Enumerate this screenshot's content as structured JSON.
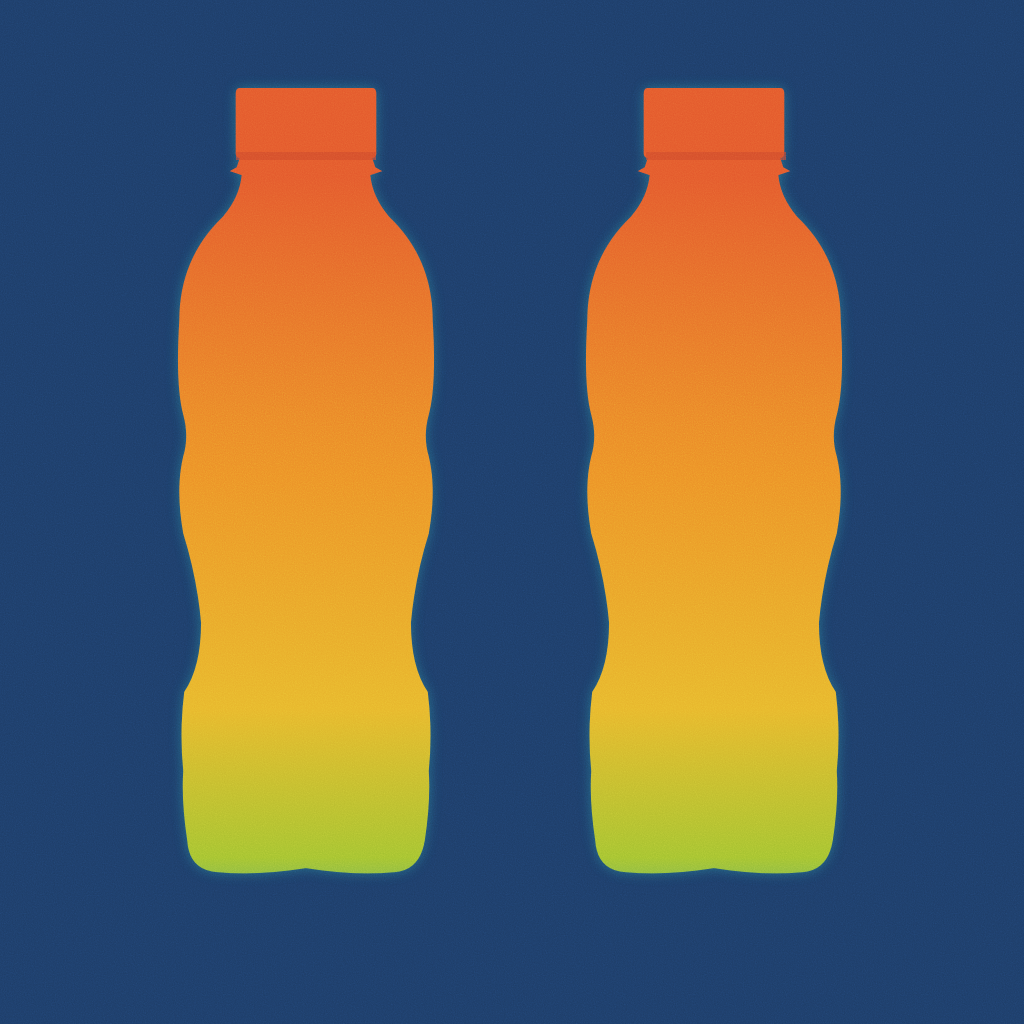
{
  "scene": {
    "background_color": "#1c3a63",
    "colormap": [
      "#1f9a8c",
      "#9fbf2e",
      "#e6b22a",
      "#eb8a25",
      "#e2552a"
    ],
    "objects": [
      {
        "name": "left-bottle",
        "kind": "plastic bottle"
      },
      {
        "name": "right-bottle",
        "kind": "plastic bottle"
      }
    ]
  }
}
